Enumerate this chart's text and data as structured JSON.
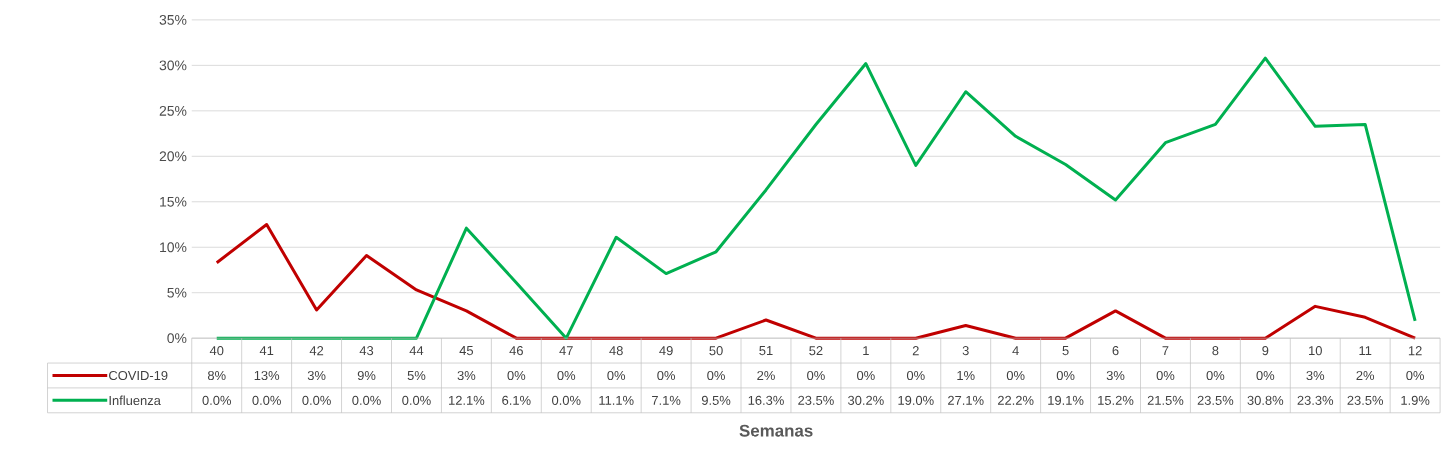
{
  "chart_data": {
    "type": "line",
    "xlabel": "Semanas",
    "categories": [
      "40",
      "41",
      "42",
      "43",
      "44",
      "45",
      "46",
      "47",
      "48",
      "49",
      "50",
      "51",
      "52",
      "1",
      "2",
      "3",
      "4",
      "5",
      "6",
      "7",
      "8",
      "9",
      "10",
      "11",
      "12"
    ],
    "series": [
      {
        "name": "COVID-19",
        "color": "#c00000",
        "values": [
          8.3,
          12.5,
          3.1,
          9.1,
          5.3,
          3.0,
          0,
          0,
          0,
          0,
          0,
          2.0,
          0,
          0,
          0,
          1.4,
          0,
          0,
          3.0,
          0,
          0,
          0,
          3.5,
          2.3,
          0
        ],
        "value_labels": [
          "8%",
          "13%",
          "3%",
          "9%",
          "5%",
          "3%",
          "0%",
          "0%",
          "0%",
          "0%",
          "0%",
          "2%",
          "0%",
          "0%",
          "0%",
          "1%",
          "0%",
          "0%",
          "3%",
          "0%",
          "0%",
          "0%",
          "3%",
          "2%",
          "0%"
        ]
      },
      {
        "name": "Influenza",
        "color": "#00b050",
        "values": [
          0.0,
          0.0,
          0.0,
          0.0,
          0.0,
          12.1,
          6.1,
          0.0,
          11.1,
          7.1,
          9.5,
          16.3,
          23.5,
          30.2,
          19.0,
          27.1,
          22.2,
          19.1,
          15.2,
          21.5,
          23.5,
          30.8,
          23.3,
          23.5,
          1.9
        ],
        "value_labels": [
          "0.0%",
          "0.0%",
          "0.0%",
          "0.0%",
          "0.0%",
          "12.1%",
          "6.1%",
          "0.0%",
          "11.1%",
          "7.1%",
          "9.5%",
          "16.3%",
          "23.5%",
          "30.2%",
          "19.0%",
          "27.1%",
          "22.2%",
          "19.1%",
          "15.2%",
          "21.5%",
          "23.5%",
          "30.8%",
          "23.3%",
          "23.5%",
          "1.9%"
        ]
      }
    ],
    "ylim": [
      0,
      35
    ],
    "yticks": [
      {
        "value": 0,
        "label": "0%"
      },
      {
        "value": 5,
        "label": "5%"
      },
      {
        "value": 10,
        "label": "10%"
      },
      {
        "value": 15,
        "label": "15%"
      },
      {
        "value": 20,
        "label": "20%"
      },
      {
        "value": 25,
        "label": "25%"
      },
      {
        "value": 30,
        "label": "30%"
      },
      {
        "value": 35,
        "label": "35%"
      }
    ],
    "grid": "y",
    "legend": "bottom",
    "marker": "none",
    "line_style": "solid"
  }
}
